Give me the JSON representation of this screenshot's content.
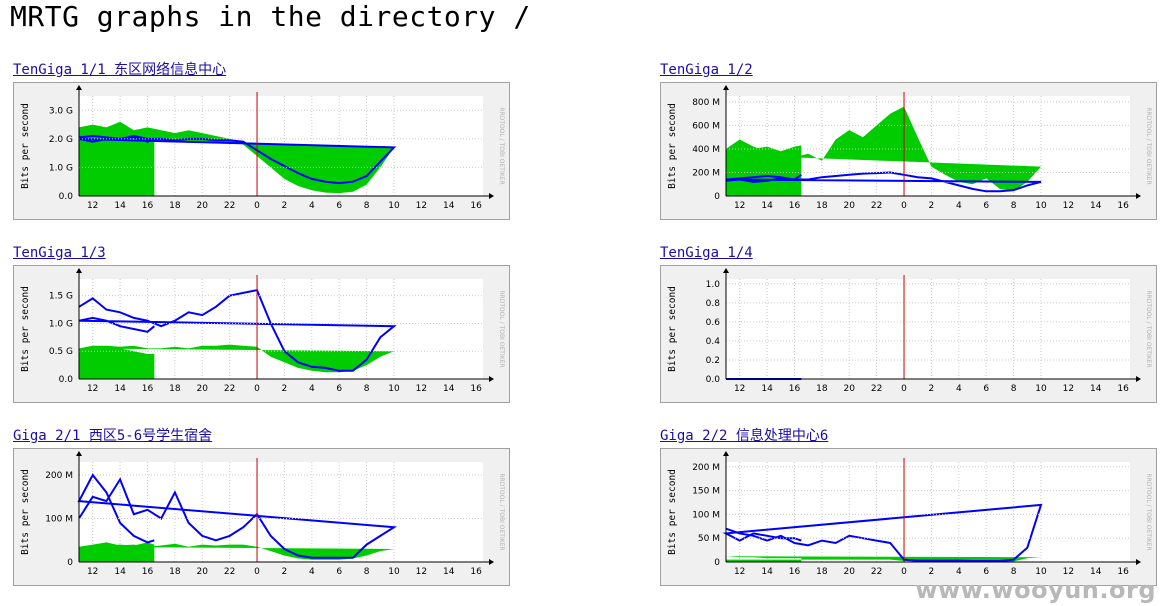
{
  "page": {
    "title": "MRTG graphs in the directory /"
  },
  "watermark": "www.wooyun.org",
  "colors": {
    "in": "#00cc00",
    "out": "#0000ff",
    "grid": "#cccccc",
    "now": "#cc0000",
    "frame": "#f0f0f0"
  },
  "chart_data": [
    {
      "type": "area",
      "title": "TenGiga 1/1 东区网络信息中心",
      "ylabel": "Bits per second",
      "side_label": "RRDTOOL / TOBI OETIKER",
      "x_ticks": [
        "12",
        "14",
        "16",
        "18",
        "20",
        "22",
        "0",
        "2",
        "4",
        "6",
        "8",
        "10",
        "12",
        "14",
        "16"
      ],
      "now_tick": "0",
      "y_ticks": [
        "0.0",
        "1.0 G",
        "2.0 G",
        "3.0 G"
      ],
      "ylim": [
        0,
        3.5
      ],
      "series": [
        {
          "key": "in",
          "x": [
            "11",
            "12",
            "13",
            "14",
            "15",
            "16",
            "17",
            "18",
            "19",
            "20",
            "21",
            "22",
            "23",
            "0",
            "1",
            "2",
            "3",
            "4",
            "5",
            "6",
            "7",
            "8",
            "9",
            "10",
            "11",
            "12",
            "13",
            "14",
            "15",
            "16",
            "16.5"
          ],
          "values": [
            2.4,
            2.5,
            2.4,
            2.6,
            2.3,
            2.4,
            2.3,
            2.2,
            2.3,
            2.2,
            2.1,
            2.0,
            1.8,
            1.4,
            1.0,
            0.6,
            0.35,
            0.2,
            0.12,
            0.1,
            0.15,
            0.4,
            1.0,
            1.7,
            2.0,
            2.1,
            2.2,
            2.3,
            2.2,
            2.3,
            2.3
          ]
        },
        {
          "key": "out",
          "x": [
            "11",
            "12",
            "13",
            "14",
            "15",
            "16",
            "17",
            "18",
            "19",
            "20",
            "21",
            "22",
            "23",
            "0",
            "1",
            "2",
            "3",
            "4",
            "5",
            "6",
            "7",
            "8",
            "9",
            "10",
            "11",
            "12",
            "13",
            "14",
            "15",
            "16",
            "16.5"
          ],
          "values": [
            2.05,
            2.1,
            2.05,
            2.0,
            2.1,
            2.0,
            2.0,
            1.95,
            2.0,
            2.0,
            1.95,
            1.95,
            1.9,
            1.6,
            1.3,
            1.05,
            0.8,
            0.6,
            0.5,
            0.45,
            0.5,
            0.7,
            1.2,
            1.7,
            2.0,
            1.9,
            2.0,
            2.0,
            2.05,
            1.9,
            2.0
          ]
        }
      ]
    },
    {
      "type": "area",
      "title": "TenGiga 1/2",
      "ylabel": "Bits per second",
      "side_label": "RRDTOOL / TOBI OETIKER",
      "x_ticks": [
        "12",
        "14",
        "16",
        "18",
        "20",
        "22",
        "0",
        "2",
        "4",
        "6",
        "8",
        "10",
        "12",
        "14",
        "16"
      ],
      "now_tick": "0",
      "y_ticks": [
        "0",
        "200 M",
        "400 M",
        "600 M",
        "800 M"
      ],
      "ylim": [
        0,
        850
      ],
      "series": [
        {
          "key": "in",
          "x": [
            "11",
            "12",
            "13",
            "14",
            "15",
            "16",
            "17",
            "18",
            "19",
            "20",
            "21",
            "22",
            "23",
            "0",
            "1",
            "2",
            "3",
            "4",
            "5",
            "6",
            "7",
            "8",
            "9",
            "10",
            "11",
            "12",
            "13",
            "14",
            "15",
            "16",
            "16.5"
          ],
          "values": [
            400,
            480,
            420,
            380,
            350,
            330,
            360,
            300,
            480,
            560,
            500,
            600,
            700,
            760,
            500,
            250,
            180,
            120,
            100,
            150,
            60,
            40,
            120,
            250,
            350,
            380,
            400,
            420,
            380,
            420,
            430
          ]
        },
        {
          "key": "out",
          "x": [
            "11",
            "12",
            "13",
            "14",
            "15",
            "16",
            "17",
            "18",
            "19",
            "20",
            "21",
            "22",
            "23",
            "0",
            "1",
            "2",
            "3",
            "4",
            "5",
            "6",
            "7",
            "8",
            "9",
            "10",
            "11",
            "12",
            "13",
            "14",
            "15",
            "16",
            "16.5"
          ],
          "values": [
            130,
            140,
            120,
            130,
            150,
            140,
            140,
            160,
            170,
            180,
            190,
            195,
            200,
            180,
            160,
            150,
            120,
            90,
            60,
            40,
            40,
            50,
            90,
            120,
            140,
            150,
            160,
            170,
            160,
            140,
            180
          ]
        }
      ]
    },
    {
      "type": "area",
      "title": "TenGiga 1/3",
      "ylabel": "Bits per second",
      "side_label": "RRDTOOL / TOBI OETIKER",
      "x_ticks": [
        "12",
        "14",
        "16",
        "18",
        "20",
        "22",
        "0",
        "2",
        "4",
        "6",
        "8",
        "10",
        "12",
        "14",
        "16"
      ],
      "now_tick": "0",
      "y_ticks": [
        "0.0",
        "0.5 G",
        "1.0 G",
        "1.5 G"
      ],
      "ylim": [
        0,
        1.8
      ],
      "series": [
        {
          "key": "in",
          "x": [
            "11",
            "12",
            "13",
            "14",
            "15",
            "16",
            "17",
            "18",
            "19",
            "20",
            "21",
            "22",
            "23",
            "0",
            "1",
            "2",
            "3",
            "4",
            "5",
            "6",
            "7",
            "8",
            "9",
            "10",
            "11",
            "12",
            "13",
            "14",
            "15",
            "16",
            "16.5"
          ],
          "values": [
            0.55,
            0.6,
            0.6,
            0.58,
            0.6,
            0.55,
            0.55,
            0.58,
            0.55,
            0.6,
            0.6,
            0.62,
            0.6,
            0.58,
            0.4,
            0.3,
            0.2,
            0.15,
            0.12,
            0.12,
            0.15,
            0.25,
            0.4,
            0.5,
            0.55,
            0.55,
            0.6,
            0.55,
            0.5,
            0.45,
            0.45
          ]
        },
        {
          "key": "out",
          "x": [
            "11",
            "12",
            "13",
            "14",
            "15",
            "16",
            "17",
            "18",
            "19",
            "20",
            "21",
            "22",
            "23",
            "0",
            "1",
            "2",
            "3",
            "4",
            "5",
            "6",
            "7",
            "8",
            "9",
            "10",
            "11",
            "12",
            "13",
            "14",
            "15",
            "16",
            "16.5"
          ],
          "values": [
            1.3,
            1.45,
            1.25,
            1.2,
            1.1,
            1.05,
            0.95,
            1.05,
            1.2,
            1.15,
            1.3,
            1.5,
            1.55,
            1.6,
            1.0,
            0.5,
            0.3,
            0.22,
            0.2,
            0.15,
            0.15,
            0.35,
            0.75,
            0.95,
            1.05,
            1.1,
            1.05,
            0.95,
            0.9,
            0.85,
            0.95
          ]
        }
      ]
    },
    {
      "type": "area",
      "title": "TenGiga 1/4",
      "ylabel": "Bits per second",
      "side_label": "RRDTOOL / TOBI OETIKER",
      "x_ticks": [
        "12",
        "14",
        "16",
        "18",
        "20",
        "22",
        "0",
        "2",
        "4",
        "6",
        "8",
        "10",
        "12",
        "14",
        "16"
      ],
      "now_tick": "0",
      "y_ticks": [
        "0.0",
        "0.2",
        "0.4",
        "0.6",
        "0.8",
        "1.0"
      ],
      "ylim": [
        0,
        1.05
      ],
      "series": [
        {
          "key": "in",
          "x": [
            "11",
            "16.5"
          ],
          "values": [
            0,
            0
          ]
        },
        {
          "key": "out",
          "x": [
            "11",
            "16.5"
          ],
          "values": [
            0,
            0
          ]
        }
      ]
    },
    {
      "type": "area",
      "title": "Giga 2/1 西区5-6号学生宿舍",
      "ylabel": "Bits per second",
      "side_label": "RRDTOOL / TOBI OETIKER",
      "x_ticks": [
        "12",
        "14",
        "16",
        "18",
        "20",
        "22",
        "0",
        "2",
        "4",
        "6",
        "8",
        "10",
        "12",
        "14",
        "16"
      ],
      "now_tick": "0",
      "y_ticks": [
        "0",
        "100 M",
        "200 M"
      ],
      "ylim": [
        0,
        230
      ],
      "series": [
        {
          "key": "in",
          "x": [
            "11",
            "12",
            "13",
            "14",
            "15",
            "16",
            "17",
            "18",
            "19",
            "20",
            "21",
            "22",
            "23",
            "0",
            "1",
            "2",
            "3",
            "4",
            "5",
            "6",
            "7",
            "8",
            "9",
            "10",
            "11",
            "12",
            "13",
            "14",
            "15",
            "16",
            "16.5"
          ],
          "values": [
            35,
            40,
            45,
            38,
            40,
            35,
            38,
            42,
            35,
            40,
            38,
            40,
            40,
            35,
            25,
            15,
            8,
            5,
            5,
            5,
            8,
            15,
            25,
            30,
            35,
            40,
            38,
            40,
            38,
            45,
            40
          ]
        },
        {
          "key": "out",
          "x": [
            "11",
            "12",
            "13",
            "14",
            "15",
            "16",
            "17",
            "18",
            "19",
            "20",
            "21",
            "22",
            "23",
            "0",
            "1",
            "2",
            "3",
            "4",
            "5",
            "6",
            "7",
            "8",
            "9",
            "10",
            "11",
            "12",
            "13",
            "14",
            "15",
            "16",
            "16.5"
          ],
          "values": [
            100,
            150,
            140,
            190,
            110,
            120,
            100,
            160,
            90,
            60,
            50,
            60,
            80,
            110,
            60,
            30,
            15,
            10,
            10,
            10,
            10,
            40,
            60,
            80,
            140,
            200,
            160,
            90,
            60,
            45,
            50
          ]
        }
      ]
    },
    {
      "type": "area",
      "title": "Giga 2/2 信息处理中心6",
      "ylabel": "Bits per second",
      "side_label": "RRDTOOL / TOBI OETIKER",
      "x_ticks": [
        "12",
        "14",
        "16",
        "18",
        "20",
        "22",
        "0",
        "2",
        "4",
        "6",
        "8",
        "10",
        "12",
        "14",
        "16"
      ],
      "now_tick": "0",
      "y_ticks": [
        "0",
        "50 M",
        "100 M",
        "150 M",
        "200 M"
      ],
      "ylim": [
        0,
        210
      ],
      "series": [
        {
          "key": "in",
          "x": [
            "11",
            "12",
            "13",
            "14",
            "15",
            "16",
            "17",
            "18",
            "19",
            "20",
            "21",
            "22",
            "23",
            "0",
            "1",
            "2",
            "3",
            "4",
            "5",
            "6",
            "7",
            "8",
            "9",
            "10",
            "11",
            "12",
            "13",
            "14",
            "15",
            "16",
            "16.5"
          ],
          "values": [
            5,
            5,
            5,
            5,
            5,
            5,
            5,
            5,
            5,
            5,
            5,
            5,
            5,
            2,
            1,
            1,
            1,
            1,
            1,
            1,
            1,
            1,
            8,
            10,
            12,
            10,
            10,
            8,
            8,
            8,
            8
          ]
        },
        {
          "key": "out",
          "x": [
            "11",
            "12",
            "13",
            "14",
            "15",
            "16",
            "17",
            "18",
            "19",
            "20",
            "21",
            "22",
            "23",
            "0",
            "1",
            "2",
            "3",
            "4",
            "5",
            "6",
            "7",
            "8",
            "9",
            "10",
            "11",
            "12",
            "13",
            "14",
            "15",
            "16",
            "16.5"
          ],
          "values": [
            70,
            60,
            55,
            45,
            55,
            40,
            35,
            45,
            40,
            55,
            50,
            45,
            40,
            5,
            3,
            3,
            3,
            3,
            2,
            2,
            2,
            5,
            30,
            120,
            60,
            45,
            60,
            55,
            50,
            50,
            45
          ]
        }
      ]
    }
  ]
}
